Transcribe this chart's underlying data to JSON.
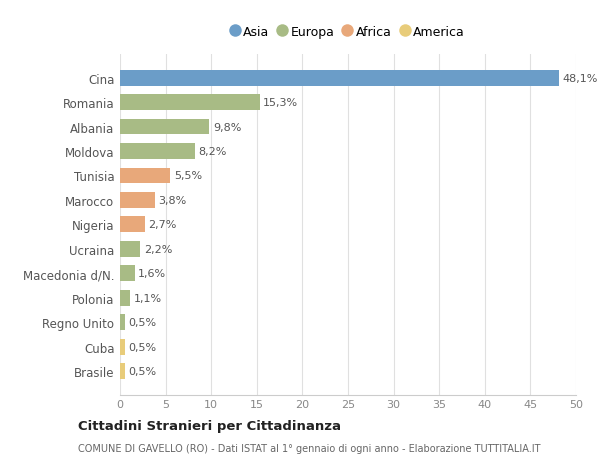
{
  "categories": [
    "Cina",
    "Romania",
    "Albania",
    "Moldova",
    "Tunisia",
    "Marocco",
    "Nigeria",
    "Ucraina",
    "Macedonia d/N.",
    "Polonia",
    "Regno Unito",
    "Cuba",
    "Brasile"
  ],
  "values": [
    48.1,
    15.3,
    9.8,
    8.2,
    5.5,
    3.8,
    2.7,
    2.2,
    1.6,
    1.1,
    0.5,
    0.5,
    0.5
  ],
  "labels": [
    "48,1%",
    "15,3%",
    "9,8%",
    "8,2%",
    "5,5%",
    "3,8%",
    "2,7%",
    "2,2%",
    "1,6%",
    "1,1%",
    "0,5%",
    "0,5%",
    "0,5%"
  ],
  "colors": [
    "#6b9dc8",
    "#a8bb85",
    "#a8bb85",
    "#a8bb85",
    "#e8a87a",
    "#e8a87a",
    "#e8a87a",
    "#a8bb85",
    "#a8bb85",
    "#a8bb85",
    "#a8bb85",
    "#e8cc7a",
    "#e8cc7a"
  ],
  "legend_labels": [
    "Asia",
    "Europa",
    "Africa",
    "America"
  ],
  "legend_colors": [
    "#6b9dc8",
    "#a8bb85",
    "#e8a87a",
    "#e8cc7a"
  ],
  "title": "Cittadini Stranieri per Cittadinanza",
  "subtitle": "COMUNE DI GAVELLO (RO) - Dati ISTAT al 1° gennaio di ogni anno - Elaborazione TUTTITALIA.IT",
  "xlim": [
    0,
    50
  ],
  "xticks": [
    0,
    5,
    10,
    15,
    20,
    25,
    30,
    35,
    40,
    45,
    50
  ],
  "background_color": "#ffffff",
  "grid_color": "#e0e0e0"
}
